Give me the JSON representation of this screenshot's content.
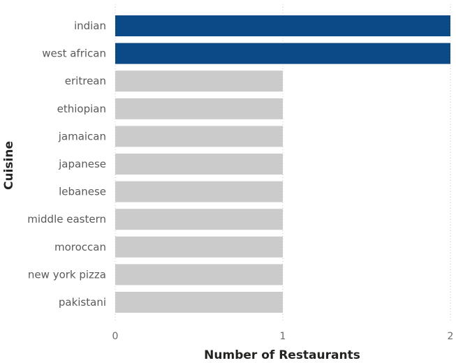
{
  "chart_data": {
    "type": "bar",
    "orientation": "horizontal",
    "categories": [
      "indian",
      "west african",
      "eritrean",
      "ethiopian",
      "jamaican",
      "japanese",
      "lebanese",
      "middle eastern",
      "moroccan",
      "new york pizza",
      "pakistani"
    ],
    "values": [
      2,
      2,
      1,
      1,
      1,
      1,
      1,
      1,
      1,
      1,
      1
    ],
    "highlighted": [
      true,
      true,
      false,
      false,
      false,
      false,
      false,
      false,
      false,
      false,
      false
    ],
    "xlabel": "Number of Restaurants",
    "ylabel": "Cuisine",
    "xlim": [
      0,
      2
    ],
    "xticks": [
      "0",
      "1",
      "2"
    ],
    "grid": true,
    "colors": {
      "highlight": "#0c4a87",
      "default": "#cbcbcb"
    }
  }
}
